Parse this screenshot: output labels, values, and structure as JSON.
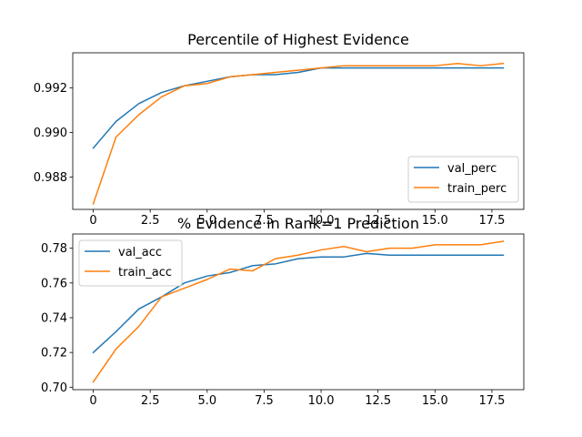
{
  "chart_data": [
    {
      "type": "line",
      "title": "Percentile of Highest Evidence",
      "xlabel": "",
      "ylabel": "",
      "x": [
        0,
        1,
        2,
        3,
        4,
        5,
        6,
        7,
        8,
        9,
        10,
        11,
        12,
        13,
        14,
        15,
        16,
        17,
        18
      ],
      "xlim": [
        -0.9,
        18.9
      ],
      "ylim": [
        0.98655,
        0.99358
      ],
      "xticks": [
        0,
        2.5,
        5,
        7.5,
        10,
        12.5,
        15,
        17.5
      ],
      "xtick_labels": [
        "0",
        "2.5",
        "5.0",
        "7.5",
        "10.0",
        "12.5",
        "15.0",
        "17.5"
      ],
      "yticks": [
        0.988,
        0.99,
        0.992
      ],
      "ytick_labels": [
        "0.988",
        "0.990",
        "0.992"
      ],
      "grid": false,
      "legend_position": "lower-right",
      "series": [
        {
          "name": "val_perc",
          "color": "#1f77b4",
          "values": [
            0.9893,
            0.9905,
            0.9913,
            0.9918,
            0.9921,
            0.9923,
            0.9925,
            0.9926,
            0.9926,
            0.9927,
            0.9929,
            0.9929,
            0.9929,
            0.9929,
            0.9929,
            0.9929,
            0.9929,
            0.9929,
            0.9929
          ]
        },
        {
          "name": "train_perc",
          "color": "#ff7f0e",
          "values": [
            0.9868,
            0.9898,
            0.9908,
            0.9916,
            0.9921,
            0.9922,
            0.9925,
            0.9926,
            0.9927,
            0.9928,
            0.9929,
            0.993,
            0.993,
            0.993,
            0.993,
            0.993,
            0.9931,
            0.993,
            0.9931
          ]
        }
      ]
    },
    {
      "type": "line",
      "title": "% Evidence in Rank=1 Prediction",
      "xlabel": "",
      "ylabel": "",
      "x": [
        0,
        1,
        2,
        3,
        4,
        5,
        6,
        7,
        8,
        9,
        10,
        11,
        12,
        13,
        14,
        15,
        16,
        17,
        18
      ],
      "xlim": [
        -0.9,
        18.9
      ],
      "ylim": [
        0.6986,
        0.7882
      ],
      "xticks": [
        0,
        2.5,
        5,
        7.5,
        10,
        12.5,
        15,
        17.5
      ],
      "xtick_labels": [
        "0",
        "2.5",
        "5.0",
        "7.5",
        "10.0",
        "12.5",
        "15.0",
        "17.5"
      ],
      "yticks": [
        0.7,
        0.72,
        0.74,
        0.76,
        0.78
      ],
      "ytick_labels": [
        "0.70",
        "0.72",
        "0.74",
        "0.76",
        "0.78"
      ],
      "grid": false,
      "legend_position": "upper-left",
      "series": [
        {
          "name": "val_acc",
          "color": "#1f77b4",
          "values": [
            0.72,
            0.732,
            0.745,
            0.752,
            0.76,
            0.764,
            0.766,
            0.77,
            0.771,
            0.774,
            0.775,
            0.775,
            0.777,
            0.776,
            0.776,
            0.776,
            0.776,
            0.776,
            0.776
          ]
        },
        {
          "name": "train_acc",
          "color": "#ff7f0e",
          "values": [
            0.703,
            0.722,
            0.735,
            0.752,
            0.757,
            0.762,
            0.768,
            0.767,
            0.774,
            0.776,
            0.779,
            0.781,
            0.778,
            0.78,
            0.78,
            0.782,
            0.782,
            0.782,
            0.784
          ]
        }
      ]
    }
  ]
}
